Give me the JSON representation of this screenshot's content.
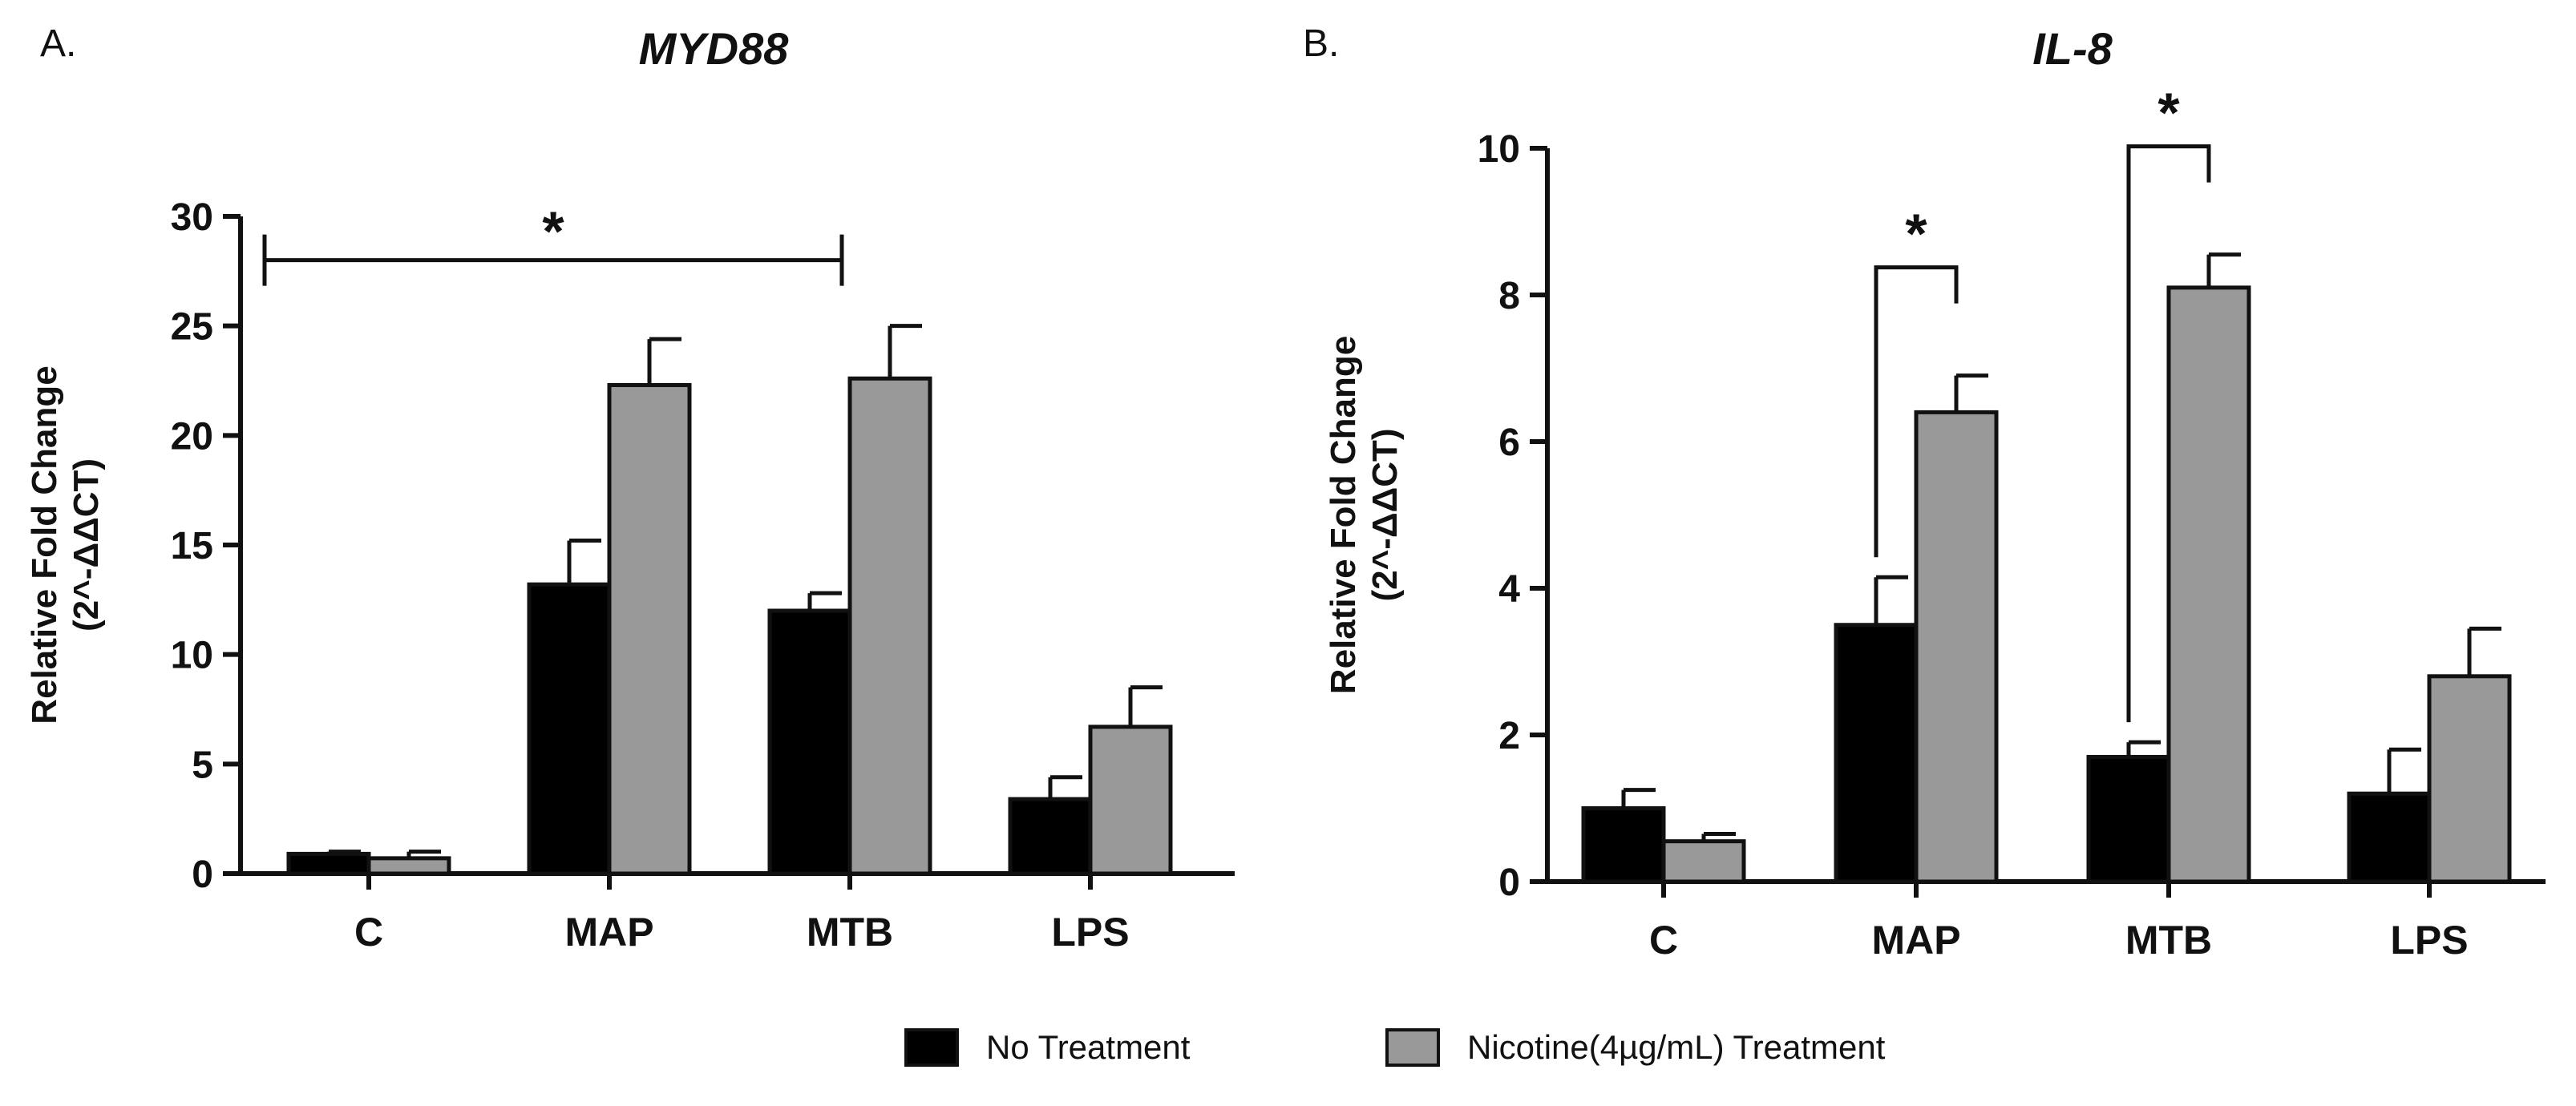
{
  "legend": {
    "items": [
      {
        "label": "No Treatment",
        "color": "#000000"
      },
      {
        "label": "Nicotine(4µg/mL) Treatment",
        "color": "#999999"
      }
    ]
  },
  "chart_data": [
    {
      "type": "bar",
      "panel": "A.",
      "title": "MYD88",
      "ylabel_line1": "Relative Fold Change",
      "ylabel_line2": "(2^-ΔΔCT)",
      "categories": [
        "C",
        "MAP",
        "MTB",
        "LPS"
      ],
      "ylim": [
        0,
        30
      ],
      "yticks": [
        0,
        5,
        10,
        15,
        20,
        25,
        30
      ],
      "series": [
        {
          "name": "No Treatment",
          "color": "#000000",
          "values": [
            0.9,
            13.2,
            12.0,
            3.4
          ],
          "errors": [
            0.1,
            2.0,
            0.8,
            1.0
          ]
        },
        {
          "name": "Nicotine(4µg/mL) Treatment",
          "color": "#999999",
          "values": [
            0.7,
            22.3,
            22.6,
            6.7
          ],
          "errors": [
            0.3,
            2.1,
            2.4,
            1.8
          ]
        }
      ],
      "significance": [
        {
          "label": "*",
          "from": "C",
          "to": "MTB",
          "style": "span"
        }
      ]
    },
    {
      "type": "bar",
      "panel": "B.",
      "title": "IL-8",
      "ylabel_line1": "Relative Fold Change",
      "ylabel_line2": "(2^-ΔΔCT)",
      "categories": [
        "C",
        "MAP",
        "MTB",
        "LPS"
      ],
      "ylim": [
        0,
        10
      ],
      "yticks": [
        0,
        2,
        4,
        6,
        8,
        10
      ],
      "series": [
        {
          "name": "No Treatment",
          "color": "#000000",
          "values": [
            1.0,
            3.5,
            1.7,
            1.2
          ],
          "errors": [
            0.25,
            0.65,
            0.2,
            0.6
          ]
        },
        {
          "name": "Nicotine(4µg/mL) Treatment",
          "color": "#999999",
          "values": [
            0.55,
            6.4,
            8.1,
            2.8
          ],
          "errors": [
            0.1,
            0.5,
            0.45,
            0.65
          ]
        }
      ],
      "significance": [
        {
          "label": "*",
          "category": "MAP",
          "style": "pair"
        },
        {
          "label": "*",
          "category": "MTB",
          "style": "pair"
        }
      ]
    }
  ]
}
